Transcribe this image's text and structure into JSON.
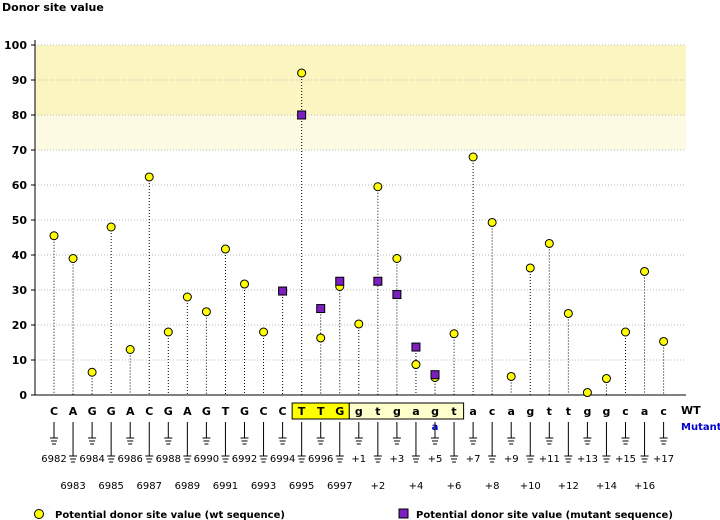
{
  "chart_data": {
    "type": "scatter",
    "title": "",
    "ylabel": "Donor site value",
    "ylim": [
      0,
      100
    ],
    "yticks": [
      0,
      10,
      20,
      30,
      40,
      50,
      60,
      70,
      80,
      90,
      100
    ],
    "highlight_band": [
      70,
      100
    ],
    "bases": [
      "C",
      "A",
      "G",
      "G",
      "A",
      "C",
      "G",
      "A",
      "G",
      "T",
      "G",
      "C",
      "C",
      "T",
      "T",
      "G",
      "g",
      "t",
      "g",
      "a",
      "g",
      "t",
      "a",
      "c",
      "a",
      "g",
      "t",
      "t",
      "g",
      "g",
      "c",
      "a",
      "c"
    ],
    "positions": [
      "6982",
      "6983",
      "6984",
      "6985",
      "6986",
      "6987",
      "6988",
      "6989",
      "6990",
      "6991",
      "6992",
      "6993",
      "6994",
      "6995",
      "6996",
      "6997",
      "+1",
      "+2",
      "+3",
      "+4",
      "+5",
      "+6",
      "+7",
      "+8",
      "+9",
      "+10",
      "+11",
      "+12",
      "+13",
      "+14",
      "+15",
      "+16",
      "+17"
    ],
    "boxed_exon": [
      13,
      15
    ],
    "boxed_intron": [
      16,
      21
    ],
    "wt_label": "WT",
    "mutant_label": "Mutant",
    "mutation": {
      "index": 20,
      "base": "a"
    },
    "series": [
      {
        "name": "Potential donor site value (wt sequence)",
        "color": "#ffff00",
        "values": [
          45.5,
          39,
          6.5,
          48,
          13,
          62.3,
          18,
          28,
          23.8,
          41.7,
          31.7,
          18,
          29.7,
          92,
          16.3,
          31,
          20.3,
          59.5,
          39,
          8.7,
          5,
          17.5,
          68,
          49.3,
          5.3,
          36.3,
          43.3,
          23.3,
          0.7,
          4.7,
          18,
          35.3,
          15.3
        ]
      },
      {
        "name": "Potential donor site value (mutant sequence)",
        "color": "#7b1fbf",
        "points": [
          {
            "index": 12,
            "value": 29.7
          },
          {
            "index": 13,
            "value": 80
          },
          {
            "index": 14,
            "value": 24.7
          },
          {
            "index": 15,
            "value": 32.5
          },
          {
            "index": 17,
            "value": 32.5
          },
          {
            "index": 18,
            "value": 28.7
          },
          {
            "index": 19,
            "value": 13.7
          },
          {
            "index": 20,
            "value": 5.8
          }
        ]
      }
    ]
  },
  "legend": {
    "wt": "Potential donor site value (wt sequence)",
    "mutant": "Potential donor site value (mutant sequence)"
  }
}
